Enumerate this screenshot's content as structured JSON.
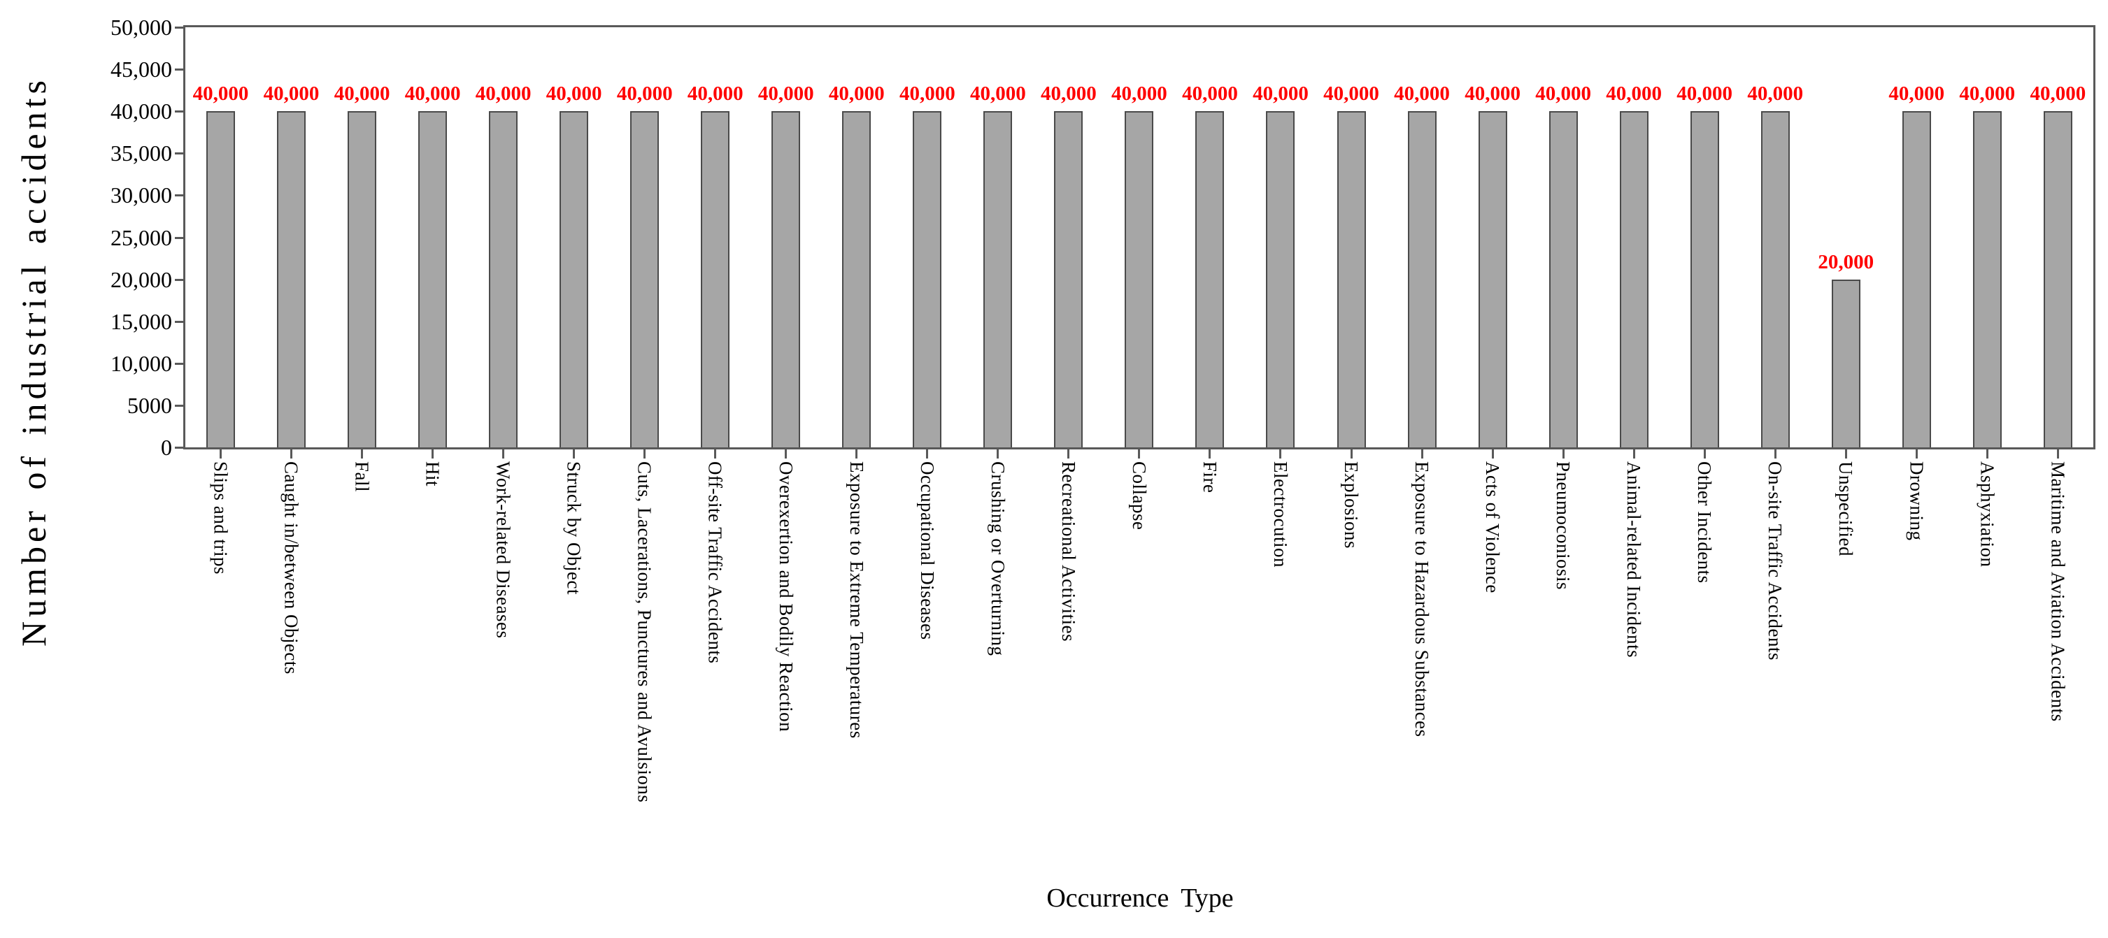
{
  "page": {
    "background": "#FFFFFF"
  },
  "chart_data": {
    "type": "bar",
    "title": "",
    "xlabel": "Occurrence Type",
    "ylabel": "Number of industrial accidents",
    "ylim": [
      0,
      50000
    ],
    "ytick_step": 5000,
    "ytick_labels": [
      "0",
      "5000",
      "10,000",
      "15,000",
      "20,000",
      "25,000",
      "30,000",
      "35,000",
      "40,000",
      "45,000",
      "50,000"
    ],
    "grid": "off",
    "legend_position": "none",
    "categories": [
      "Slips and trips",
      "Caught in/between Objects",
      "Fall",
      "Hit",
      "Work-related Diseases",
      "Struck by Object",
      "Cuts, Lacerations, Punctures and Avulsions",
      "Off-site Traffic Accidents",
      "Overexertion and Bodily Reaction",
      "Exposure to Extreme Temperatures",
      "Occupational Diseases",
      "Crushing or Overturning",
      "Recreational Activities",
      "Collapse",
      "Fire",
      "Electrocution",
      "Explosions",
      "Exposure to Hazardous Substances",
      "Acts of Violence",
      "Pneumoconiosis",
      "Animal-related Incidents",
      "Other Incidents",
      "On-site Traffic Accidents",
      "Unspecified",
      "Drowning",
      "Asphyxiation",
      "Maritime and Aviation Accidents"
    ],
    "values": [
      40000,
      40000,
      40000,
      40000,
      40000,
      40000,
      40000,
      40000,
      40000,
      40000,
      40000,
      40000,
      40000,
      40000,
      40000,
      40000,
      40000,
      40000,
      40000,
      40000,
      40000,
      40000,
      40000,
      20000,
      40000,
      40000,
      40000
    ],
    "bar_labels": [
      "40,000",
      "40,000",
      "40,000",
      "40,000",
      "40,000",
      "40,000",
      "40,000",
      "40,000",
      "40,000",
      "40,000",
      "40,000",
      "40,000",
      "40,000",
      "40,000",
      "40,000",
      "40,000",
      "40,000",
      "40,000",
      "40,000",
      "40,000",
      "40,000",
      "40,000",
      "40,000",
      "20,000",
      "40,000",
      "40,000",
      "40,000"
    ],
    "styles": {
      "bar_fill": "#A6A6A6",
      "bar_border": "#4A4A4A",
      "data_label_color": "#FF0000",
      "axis_color": "#595959",
      "text_color": "#000000"
    }
  }
}
